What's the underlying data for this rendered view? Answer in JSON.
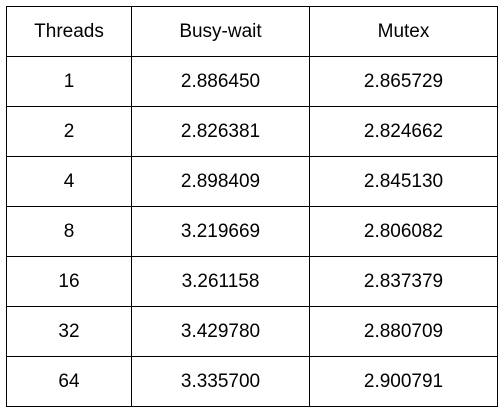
{
  "table": {
    "headers": [
      "Threads",
      "Busy-wait",
      "Mutex"
    ],
    "rows": [
      [
        "1",
        "2.886450",
        "2.865729"
      ],
      [
        "2",
        "2.826381",
        "2.824662"
      ],
      [
        "4",
        "2.898409",
        "2.845130"
      ],
      [
        "8",
        "3.219669",
        "2.806082"
      ],
      [
        "16",
        "3.261158",
        "2.837379"
      ],
      [
        "32",
        "3.429780",
        "2.880709"
      ],
      [
        "64",
        "3.335700",
        "2.900791"
      ]
    ]
  }
}
